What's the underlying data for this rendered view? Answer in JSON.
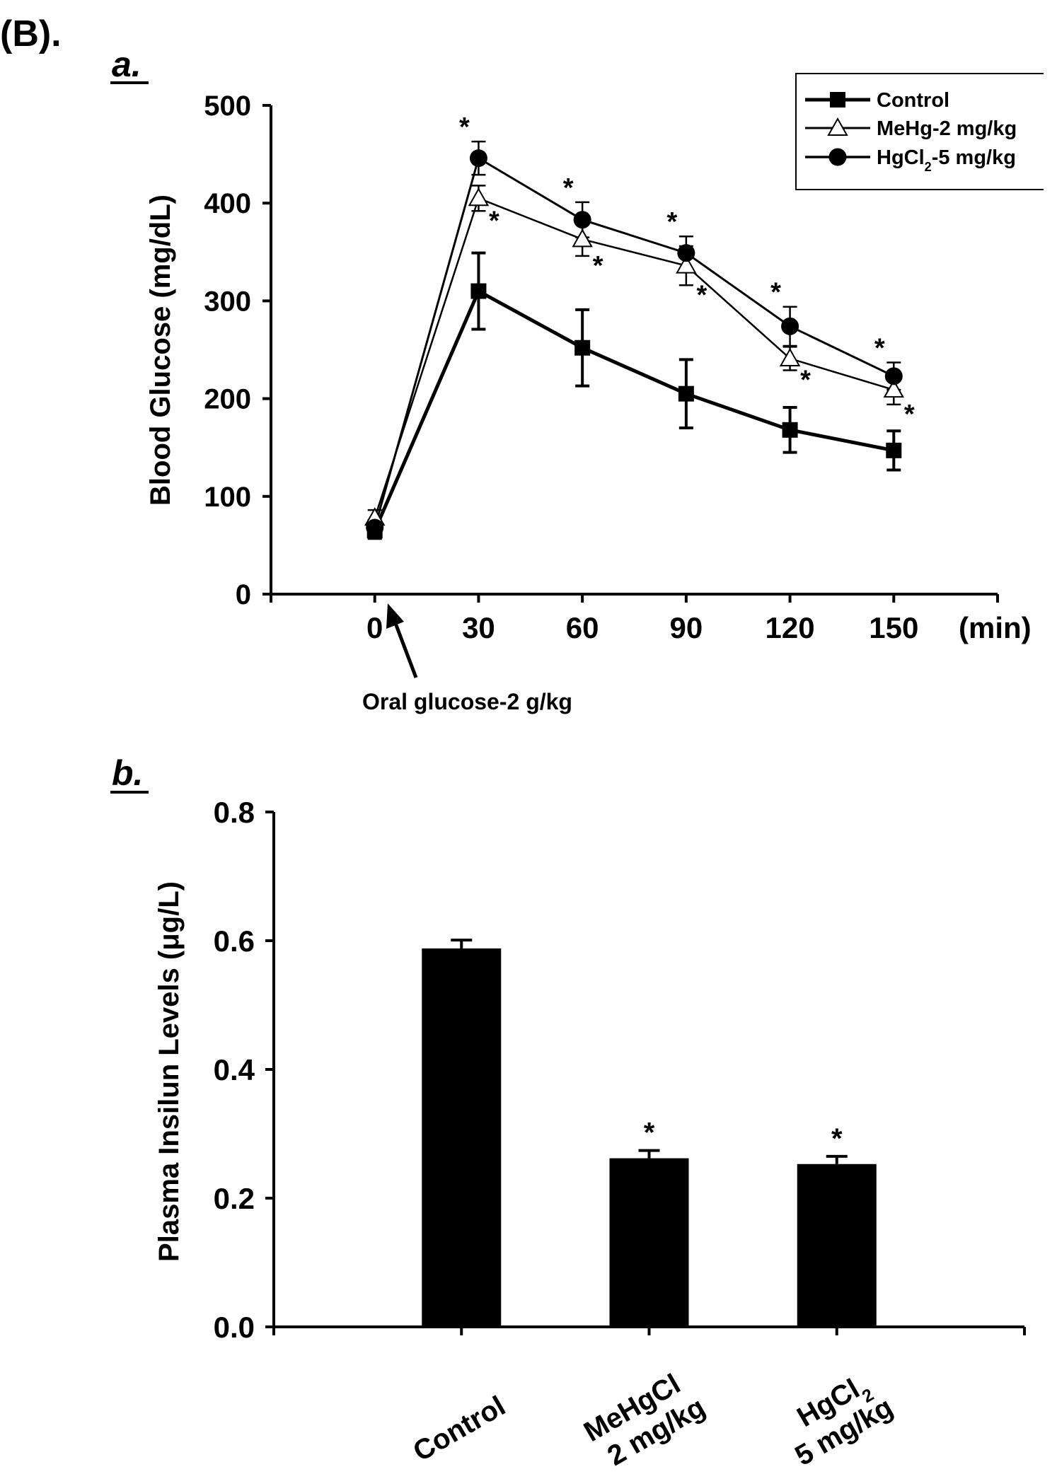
{
  "figure": {
    "panel_label": "(B)."
  },
  "chart_data": [
    {
      "panel": "a.",
      "type": "line",
      "title": "",
      "xlabel": "(min)",
      "ylabel": "Blood Glucose (mg/dL)",
      "x": [
        0,
        30,
        60,
        90,
        120,
        150
      ],
      "xlim": [
        -30,
        180
      ],
      "ylim": [
        0,
        500
      ],
      "yticks": [
        0,
        100,
        200,
        300,
        400,
        500
      ],
      "xticks": [
        0,
        30,
        60,
        90,
        120,
        150
      ],
      "series": [
        {
          "name": "Control",
          "marker": "square",
          "values": [
            65,
            310,
            252,
            205,
            168,
            147
          ],
          "errors": [
            8,
            39,
            39,
            35,
            23,
            20
          ],
          "sig": [
            false,
            false,
            false,
            false,
            false,
            false
          ]
        },
        {
          "name": "MeHg-2 mg/kg",
          "marker": "triangle",
          "values": [
            78,
            405,
            363,
            336,
            241,
            209
          ],
          "errors": [
            8,
            13,
            17,
            20,
            12,
            15
          ],
          "sig": [
            false,
            true,
            true,
            true,
            true,
            true
          ]
        },
        {
          "name": "HgCl",
          "name_sub": "2",
          "name_suffix": "-5 mg/kg",
          "marker": "circle",
          "values": [
            68,
            446,
            383,
            349,
            274,
            223
          ],
          "errors": [
            8,
            17,
            18,
            17,
            20,
            14
          ],
          "sig": [
            false,
            true,
            true,
            true,
            true,
            true
          ]
        }
      ],
      "legend_position": "top-right",
      "annotation": "Oral glucose-2 g/kg",
      "sig_symbol": "*"
    },
    {
      "panel": "b.",
      "type": "bar",
      "title": "",
      "xlabel": "",
      "ylabel": "Plasma Insilun Levels (μg/L)",
      "categories": [
        {
          "line1": "Control",
          "line2": ""
        },
        {
          "line1": "MeHgCl",
          "line2": "2 mg/kg"
        },
        {
          "line1": "HgCl",
          "line1_sub": "2",
          "line2": "5 mg/kg"
        }
      ],
      "values": [
        0.588,
        0.262,
        0.253
      ],
      "errors": [
        0.013,
        0.012,
        0.012
      ],
      "sig": [
        false,
        true,
        true
      ],
      "ylim": [
        0,
        0.8
      ],
      "yticks": [
        "0.0",
        "0.2",
        "0.4",
        "0.6",
        "0.8"
      ],
      "sig_symbol": "*"
    }
  ]
}
